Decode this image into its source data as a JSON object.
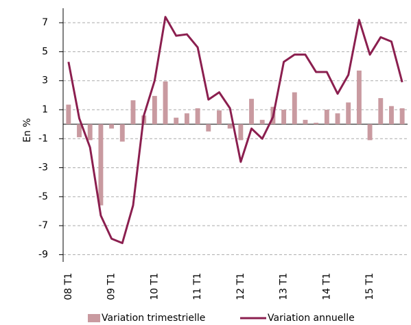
{
  "chart_data": {
    "type": "bar-line",
    "y_label": "En %",
    "categories": [
      "08 T1",
      null,
      null,
      null,
      "09 T1",
      null,
      null,
      null,
      "10 T1",
      null,
      null,
      null,
      "11 T1",
      null,
      null,
      null,
      "12 T1",
      null,
      null,
      null,
      "13 T1",
      null,
      null,
      null,
      "14 T1",
      null,
      null,
      null,
      "15 T1",
      null,
      null,
      null
    ],
    "series": [
      {
        "name": "Variation trimestrielle",
        "type": "bar",
        "color": "#c99aa0",
        "values": [
          1.35,
          -0.9,
          -1.1,
          -5.6,
          -0.3,
          -1.2,
          1.65,
          0.6,
          1.95,
          2.95,
          0.45,
          0.75,
          1.1,
          -0.5,
          0.95,
          -0.3,
          -1.1,
          1.75,
          0.3,
          1.2,
          1.0,
          2.2,
          0.3,
          0.1,
          1.0,
          0.75,
          1.5,
          3.7,
          -1.1,
          1.8,
          1.25,
          1.1
        ]
      },
      {
        "name": "Variation annuelle",
        "type": "line",
        "color": "#8b1f4f",
        "values": [
          4.3,
          0.4,
          -1.6,
          -6.3,
          -7.9,
          -8.2,
          -5.6,
          0.6,
          3.0,
          7.4,
          6.1,
          6.2,
          5.3,
          1.7,
          2.2,
          1.1,
          -2.6,
          -0.3,
          -1.0,
          0.5,
          4.3,
          4.8,
          4.8,
          3.6,
          3.6,
          2.1,
          3.4,
          7.2,
          4.8,
          6.0,
          5.7,
          2.9
        ]
      }
    ],
    "ylim": [
      -9.5,
      8
    ],
    "yticks": [
      -9,
      -7,
      -5,
      -3,
      -1,
      1,
      3,
      5,
      7
    ],
    "grid": true,
    "legend": "bottom"
  }
}
